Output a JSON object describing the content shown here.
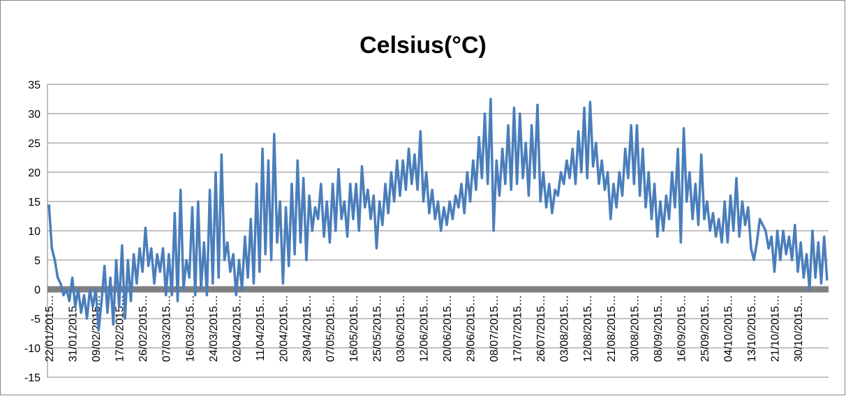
{
  "chart_data": {
    "type": "line",
    "title": "Celsius(°C)",
    "color": "#4a7ebb",
    "grid": true,
    "ylim": [
      -15,
      35
    ],
    "yticks": [
      -15,
      -10,
      -5,
      0,
      5,
      10,
      15,
      20,
      25,
      30,
      35
    ],
    "categories": [
      "22/01/2015…",
      null,
      null,
      null,
      null,
      null,
      null,
      null,
      "31/01/2015…",
      null,
      null,
      null,
      null,
      null,
      null,
      null,
      "09/02/2015…",
      null,
      null,
      null,
      null,
      null,
      null,
      null,
      "17/02/2015…",
      null,
      null,
      null,
      null,
      null,
      null,
      null,
      "26/02/2015…",
      null,
      null,
      null,
      null,
      null,
      null,
      null,
      "07/03/2015…",
      null,
      null,
      null,
      null,
      null,
      null,
      null,
      "16/03/2015…",
      null,
      null,
      null,
      null,
      null,
      null,
      null,
      "24/03/2015…",
      null,
      null,
      null,
      null,
      null,
      null,
      null,
      "02/04/2015…",
      null,
      null,
      null,
      null,
      null,
      null,
      null,
      "11/04/2015…",
      null,
      null,
      null,
      null,
      null,
      null,
      null,
      "20/04/2015…",
      null,
      null,
      null,
      null,
      null,
      null,
      null,
      "29/04/2015…",
      null,
      null,
      null,
      null,
      null,
      null,
      null,
      "07/05/2015…",
      null,
      null,
      null,
      null,
      null,
      null,
      null,
      "16/05/2015…",
      null,
      null,
      null,
      null,
      null,
      null,
      null,
      "25/05/2015…",
      null,
      null,
      null,
      null,
      null,
      null,
      null,
      "03/06/2015…",
      null,
      null,
      null,
      null,
      null,
      null,
      null,
      "12/06/2015…",
      null,
      null,
      null,
      null,
      null,
      null,
      null,
      "20/06/2015…",
      null,
      null,
      null,
      null,
      null,
      null,
      null,
      "29/06/2015…",
      null,
      null,
      null,
      null,
      null,
      null,
      null,
      "08/07/2015…",
      null,
      null,
      null,
      null,
      null,
      null,
      null,
      "17/07/2015…",
      null,
      null,
      null,
      null,
      null,
      null,
      null,
      "26/07/2015…",
      null,
      null,
      null,
      null,
      null,
      null,
      null,
      "03/08/2015…",
      null,
      null,
      null,
      null,
      null,
      null,
      null,
      "12/08/2015…",
      null,
      null,
      null,
      null,
      null,
      null,
      null,
      "21/08/2015…",
      null,
      null,
      null,
      null,
      null,
      null,
      null,
      "30/08/2015…",
      null,
      null,
      null,
      null,
      null,
      null,
      null,
      "08/09/2015…",
      null,
      null,
      null,
      null,
      null,
      null,
      null,
      "16/09/2015…",
      null,
      null,
      null,
      null,
      null,
      null,
      null,
      "25/09/2015…",
      null,
      null,
      null,
      null,
      null,
      null,
      null,
      "04/10/2015…",
      null,
      null,
      null,
      null,
      null,
      null,
      null,
      "13/10/2015…",
      null,
      null,
      null,
      null,
      null,
      null,
      null,
      "21/10/2015…",
      null,
      null,
      null,
      null,
      null,
      null,
      null,
      "30/10/2015…",
      null,
      null,
      null,
      null,
      null,
      null,
      null,
      null,
      null,
      null
    ],
    "values": [
      14.5,
      7,
      5,
      2,
      1,
      -1,
      0,
      -2,
      2,
      -3,
      0,
      -4,
      -1,
      -5,
      0,
      -3,
      0,
      -7,
      -2,
      4,
      -4,
      2,
      -6,
      5,
      -3,
      7.5,
      -5,
      5,
      -2,
      6,
      1,
      7,
      3,
      10.5,
      4,
      7,
      1,
      6,
      3,
      7,
      -1,
      6,
      -1,
      13,
      -2,
      17,
      0,
      5,
      2,
      14,
      -1,
      15,
      0,
      8,
      -1,
      17,
      1,
      20,
      2,
      23,
      5,
      8,
      3,
      6,
      -1,
      5,
      0,
      9,
      2,
      12,
      1,
      18,
      3,
      24,
      6,
      22,
      5,
      26.5,
      8,
      15,
      1,
      14,
      4,
      18,
      6,
      22,
      8,
      19,
      5,
      16,
      10,
      14,
      12,
      18,
      9,
      15,
      8,
      18,
      10,
      20.5,
      12,
      15,
      9,
      18,
      12,
      18,
      10,
      21,
      14,
      17,
      12,
      16,
      7,
      15,
      11,
      18,
      13,
      20,
      15,
      22,
      16,
      22,
      17,
      24,
      18,
      23,
      17,
      27,
      15,
      20,
      13,
      17,
      12,
      15,
      10,
      14,
      11,
      15,
      12,
      16,
      14,
      18,
      13,
      20,
      15,
      22,
      17,
      26,
      19,
      30,
      18,
      32.5,
      10,
      22,
      16,
      24,
      18,
      28,
      17,
      31,
      18,
      30,
      19,
      25,
      16,
      28,
      19,
      31.5,
      15,
      20,
      14,
      18,
      13,
      17,
      16,
      20,
      18,
      22,
      19,
      24,
      18,
      27,
      20,
      31,
      19,
      32,
      21,
      25,
      18,
      22,
      17,
      20,
      12,
      18,
      14,
      20,
      16,
      24,
      19,
      28,
      18,
      28,
      16,
      24,
      14,
      20,
      12,
      18,
      9,
      15,
      10,
      16,
      12,
      20,
      14,
      24,
      8,
      27.5,
      15,
      20,
      12,
      18,
      11,
      23,
      12,
      15,
      10,
      13,
      9,
      12,
      8,
      15,
      8,
      16,
      10,
      19,
      9,
      15,
      11,
      14,
      7,
      5,
      8,
      12,
      11,
      10,
      7,
      9,
      3,
      10,
      5,
      10,
      6,
      9,
      5,
      11,
      3,
      8,
      2,
      6,
      0,
      10,
      2,
      8,
      1,
      9,
      1.5
    ]
  }
}
